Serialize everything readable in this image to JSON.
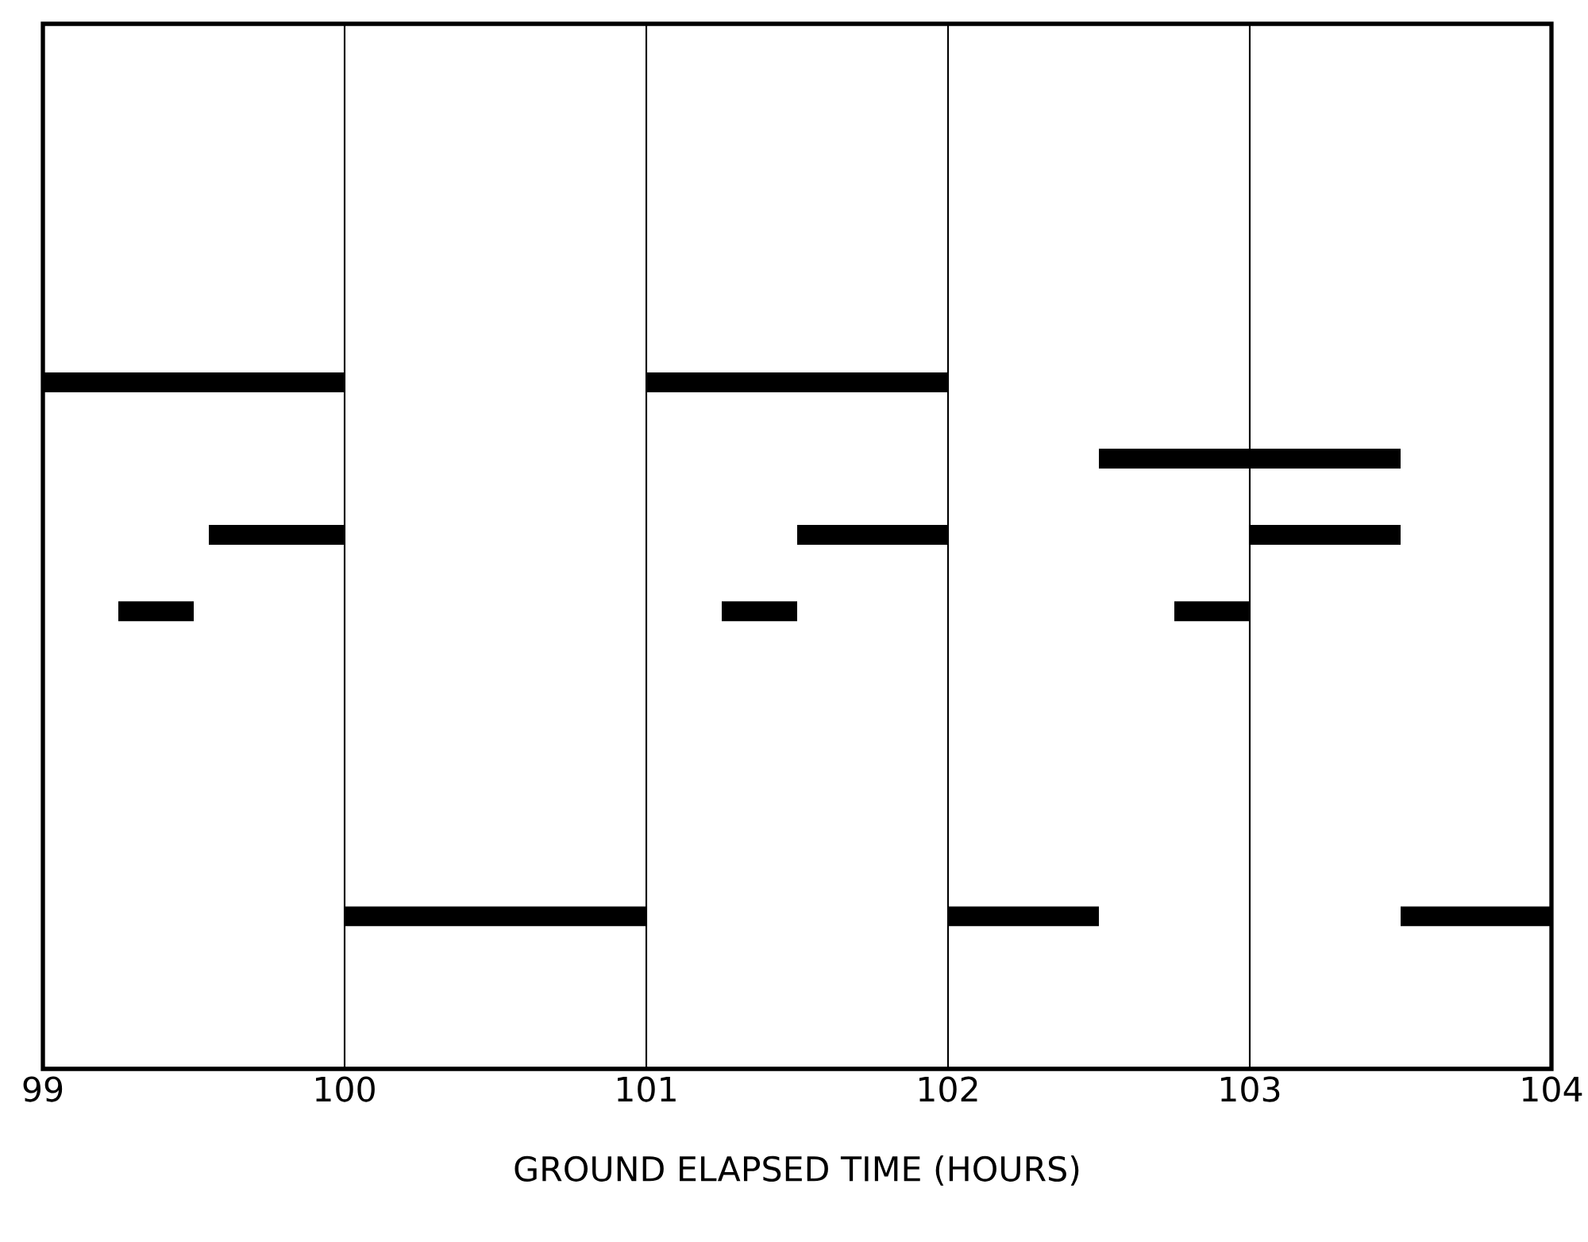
{
  "chart_data": {
    "type": "bar",
    "orientation": "horizontal",
    "xlabel": "GROUND ELAPSED TIME (HOURS)",
    "categories": [
      null,
      null,
      null,
      null,
      null,
      null,
      null,
      null,
      null,
      null,
      null,
      null,
      null
    ],
    "series": [
      {
        "color": "#000000",
        "values": [
          null,
          null,
          null,
          null,
          1,
          1,
          0.45,
          0.25,
          null,
          null,
          null,
          1,
          null
        ],
        "base": [
          null,
          null,
          null,
          null,
          99,
          102.5,
          99.55,
          99.25,
          null,
          null,
          null,
          100,
          null
        ]
      },
      {
        "color": "#000000",
        "values": [
          null,
          null,
          null,
          null,
          1,
          null,
          0.5,
          0.25,
          null,
          null,
          null,
          0.5,
          null
        ],
        "base": [
          null,
          null,
          null,
          null,
          101,
          null,
          101.5,
          101.25,
          null,
          null,
          null,
          102,
          null
        ]
      },
      {
        "color": "#000000",
        "values": [
          null,
          null,
          null,
          null,
          null,
          null,
          0.5,
          0.25,
          null,
          null,
          null,
          0.5,
          null
        ],
        "base": [
          null,
          null,
          null,
          null,
          null,
          null,
          103,
          102.75,
          null,
          null,
          null,
          103.5,
          null
        ]
      }
    ],
    "xlim": [
      99,
      104
    ],
    "xticks": [
      99,
      100,
      101,
      102,
      103,
      104
    ],
    "grid": "x",
    "tick_labels": "x"
  }
}
